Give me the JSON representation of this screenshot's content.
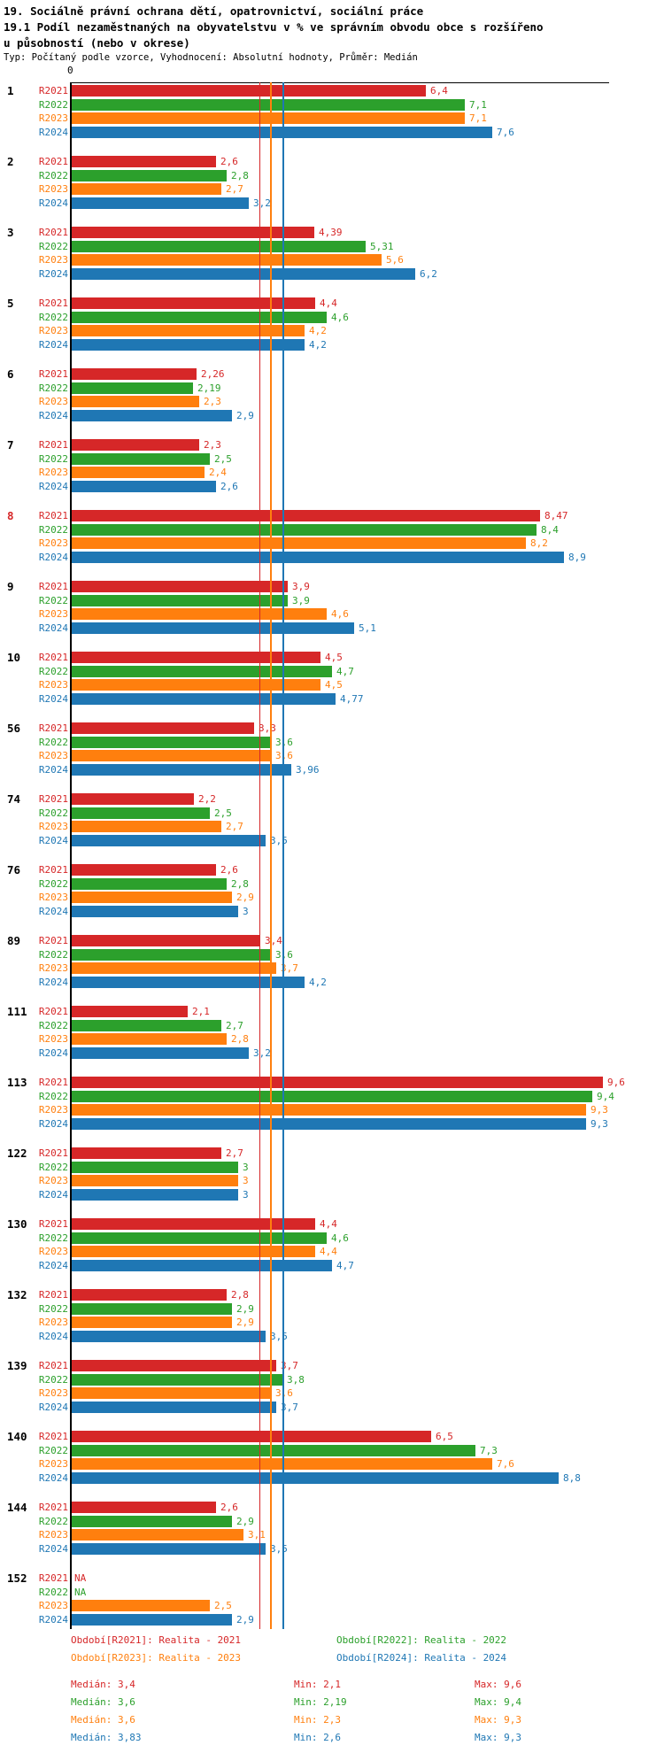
{
  "header": {
    "title_line1": "19. Sociálně právní ochrana dětí, opatrovnictví, sociální práce",
    "title_line2": "19.1 Podíl nezaměstnaných na obyvatelstvu v % ve správním obvodu obce s rozšířeno",
    "title_line3": "u působností (nebo v okrese)",
    "subtitle": "Typ: Počítaný podle vzorce, Vyhodnocení: Absolutní hodnoty, Průměr: Medián"
  },
  "chart_data": {
    "type": "bar",
    "orientation": "horizontal",
    "title": "19.1 Podíl nezaměstnaných na obyvatelstvu v % ve správním obvodu obce s rozšířenou působností (nebo v okrese)",
    "origin_tick_label": "0",
    "xlim": [
      0,
      9.7
    ],
    "grid": false,
    "series_labels": [
      "R2021",
      "R2022",
      "R2023",
      "R2024"
    ],
    "series_colors": {
      "R2021": "#d62728",
      "R2022": "#2ca02c",
      "R2023": "#ff7f0e",
      "R2024": "#1f77b4"
    },
    "groups": [
      {
        "id": "1",
        "highlighted": false,
        "bars": [
          {
            "v": 6.4,
            "t": "6,4"
          },
          {
            "v": 7.1,
            "t": "7,1"
          },
          {
            "v": 7.1,
            "t": "7,1"
          },
          {
            "v": 7.6,
            "t": "7,6"
          }
        ]
      },
      {
        "id": "2",
        "highlighted": false,
        "bars": [
          {
            "v": 2.6,
            "t": "2,6"
          },
          {
            "v": 2.8,
            "t": "2,8"
          },
          {
            "v": 2.7,
            "t": "2,7"
          },
          {
            "v": 3.2,
            "t": "3,2"
          }
        ]
      },
      {
        "id": "3",
        "highlighted": false,
        "bars": [
          {
            "v": 4.39,
            "t": "4,39"
          },
          {
            "v": 5.31,
            "t": "5,31"
          },
          {
            "v": 5.6,
            "t": "5,6"
          },
          {
            "v": 6.2,
            "t": "6,2"
          }
        ]
      },
      {
        "id": "5",
        "highlighted": false,
        "bars": [
          {
            "v": 4.4,
            "t": "4,4"
          },
          {
            "v": 4.6,
            "t": "4,6"
          },
          {
            "v": 4.2,
            "t": "4,2"
          },
          {
            "v": 4.2,
            "t": "4,2"
          }
        ]
      },
      {
        "id": "6",
        "highlighted": false,
        "bars": [
          {
            "v": 2.26,
            "t": "2,26"
          },
          {
            "v": 2.19,
            "t": "2,19"
          },
          {
            "v": 2.3,
            "t": "2,3"
          },
          {
            "v": 2.9,
            "t": "2,9"
          }
        ]
      },
      {
        "id": "7",
        "highlighted": false,
        "bars": [
          {
            "v": 2.3,
            "t": "2,3"
          },
          {
            "v": 2.5,
            "t": "2,5"
          },
          {
            "v": 2.4,
            "t": "2,4"
          },
          {
            "v": 2.6,
            "t": "2,6"
          }
        ]
      },
      {
        "id": "8",
        "highlighted": true,
        "bars": [
          {
            "v": 8.47,
            "t": "8,47"
          },
          {
            "v": 8.4,
            "t": "8,4"
          },
          {
            "v": 8.2,
            "t": "8,2"
          },
          {
            "v": 8.9,
            "t": "8,9"
          }
        ]
      },
      {
        "id": "9",
        "highlighted": false,
        "bars": [
          {
            "v": 3.9,
            "t": "3,9"
          },
          {
            "v": 3.9,
            "t": "3,9"
          },
          {
            "v": 4.6,
            "t": "4,6"
          },
          {
            "v": 5.1,
            "t": "5,1"
          }
        ]
      },
      {
        "id": "10",
        "highlighted": false,
        "bars": [
          {
            "v": 4.5,
            "t": "4,5"
          },
          {
            "v": 4.7,
            "t": "4,7"
          },
          {
            "v": 4.5,
            "t": "4,5"
          },
          {
            "v": 4.77,
            "t": "4,77"
          }
        ]
      },
      {
        "id": "56",
        "highlighted": false,
        "bars": [
          {
            "v": 3.3,
            "t": "3,3"
          },
          {
            "v": 3.6,
            "t": "3,6"
          },
          {
            "v": 3.6,
            "t": "3,6"
          },
          {
            "v": 3.96,
            "t": "3,96"
          }
        ]
      },
      {
        "id": "74",
        "highlighted": false,
        "bars": [
          {
            "v": 2.2,
            "t": "2,2"
          },
          {
            "v": 2.5,
            "t": "2,5"
          },
          {
            "v": 2.7,
            "t": "2,7"
          },
          {
            "v": 3.5,
            "t": "3,5"
          }
        ]
      },
      {
        "id": "76",
        "highlighted": false,
        "bars": [
          {
            "v": 2.6,
            "t": "2,6"
          },
          {
            "v": 2.8,
            "t": "2,8"
          },
          {
            "v": 2.9,
            "t": "2,9"
          },
          {
            "v": 3,
            "t": "3"
          }
        ]
      },
      {
        "id": "89",
        "highlighted": false,
        "bars": [
          {
            "v": 3.4,
            "t": "3,4"
          },
          {
            "v": 3.6,
            "t": "3,6"
          },
          {
            "v": 3.7,
            "t": "3,7"
          },
          {
            "v": 4.2,
            "t": "4,2"
          }
        ]
      },
      {
        "id": "111",
        "highlighted": false,
        "bars": [
          {
            "v": 2.1,
            "t": "2,1"
          },
          {
            "v": 2.7,
            "t": "2,7"
          },
          {
            "v": 2.8,
            "t": "2,8"
          },
          {
            "v": 3.2,
            "t": "3,2"
          }
        ]
      },
      {
        "id": "113",
        "highlighted": false,
        "bars": [
          {
            "v": 9.6,
            "t": "9,6"
          },
          {
            "v": 9.4,
            "t": "9,4"
          },
          {
            "v": 9.3,
            "t": "9,3"
          },
          {
            "v": 9.3,
            "t": "9,3"
          }
        ]
      },
      {
        "id": "122",
        "highlighted": false,
        "bars": [
          {
            "v": 2.7,
            "t": "2,7"
          },
          {
            "v": 3,
            "t": "3"
          },
          {
            "v": 3,
            "t": "3"
          },
          {
            "v": 3,
            "t": "3"
          }
        ]
      },
      {
        "id": "130",
        "highlighted": false,
        "bars": [
          {
            "v": 4.4,
            "t": "4,4"
          },
          {
            "v": 4.6,
            "t": "4,6"
          },
          {
            "v": 4.4,
            "t": "4,4"
          },
          {
            "v": 4.7,
            "t": "4,7"
          }
        ]
      },
      {
        "id": "132",
        "highlighted": false,
        "bars": [
          {
            "v": 2.8,
            "t": "2,8"
          },
          {
            "v": 2.9,
            "t": "2,9"
          },
          {
            "v": 2.9,
            "t": "2,9"
          },
          {
            "v": 3.5,
            "t": "3,5"
          }
        ]
      },
      {
        "id": "139",
        "highlighted": false,
        "bars": [
          {
            "v": 3.7,
            "t": "3,7"
          },
          {
            "v": 3.8,
            "t": "3,8"
          },
          {
            "v": 3.6,
            "t": "3,6"
          },
          {
            "v": 3.7,
            "t": "3,7"
          }
        ]
      },
      {
        "id": "140",
        "highlighted": false,
        "bars": [
          {
            "v": 6.5,
            "t": "6,5"
          },
          {
            "v": 7.3,
            "t": "7,3"
          },
          {
            "v": 7.6,
            "t": "7,6"
          },
          {
            "v": 8.8,
            "t": "8,8"
          }
        ]
      },
      {
        "id": "144",
        "highlighted": false,
        "bars": [
          {
            "v": 2.6,
            "t": "2,6"
          },
          {
            "v": 2.9,
            "t": "2,9"
          },
          {
            "v": 3.1,
            "t": "3,1"
          },
          {
            "v": 3.5,
            "t": "3,5"
          }
        ]
      },
      {
        "id": "152",
        "highlighted": false,
        "bars": [
          {
            "v": null,
            "t": "NA"
          },
          {
            "v": null,
            "t": "NA"
          },
          {
            "v": 2.5,
            "t": "2,5"
          },
          {
            "v": 2.9,
            "t": "2,9"
          }
        ]
      }
    ],
    "reference_lines": [
      {
        "series": "R2022",
        "value": 3.6,
        "color": "#2ca02c"
      },
      {
        "series": "R2021",
        "value": 3.4,
        "color": "#d62728"
      },
      {
        "series": "R2023",
        "value": 3.6,
        "color": "#ff7f0e"
      },
      {
        "series": "R2024",
        "value": 3.83,
        "color": "#1f77b4"
      }
    ],
    "legend": [
      {
        "label": "Období[R2021]: Realita - 2021",
        "color": "#d62728"
      },
      {
        "label": "Období[R2022]: Realita - 2022",
        "color": "#2ca02c"
      },
      {
        "label": "Období[R2023]: Realita - 2023",
        "color": "#ff7f0e"
      },
      {
        "label": "Období[R2024]: Realita - 2024",
        "color": "#1f77b4"
      }
    ],
    "stats": [
      {
        "median": "Medián: 3,4",
        "min": "Min: 2,1",
        "max": "Max: 9,6",
        "color": "#d62728"
      },
      {
        "median": "Medián: 3,6",
        "min": "Min: 2,19",
        "max": "Max: 9,4",
        "color": "#2ca02c"
      },
      {
        "median": "Medián: 3,6",
        "min": "Min: 2,3",
        "max": "Max: 9,3",
        "color": "#ff7f0e"
      },
      {
        "median": "Medián: 3,83",
        "min": "Min: 2,6",
        "max": "Max: 9,3",
        "color": "#1f77b4"
      }
    ]
  }
}
